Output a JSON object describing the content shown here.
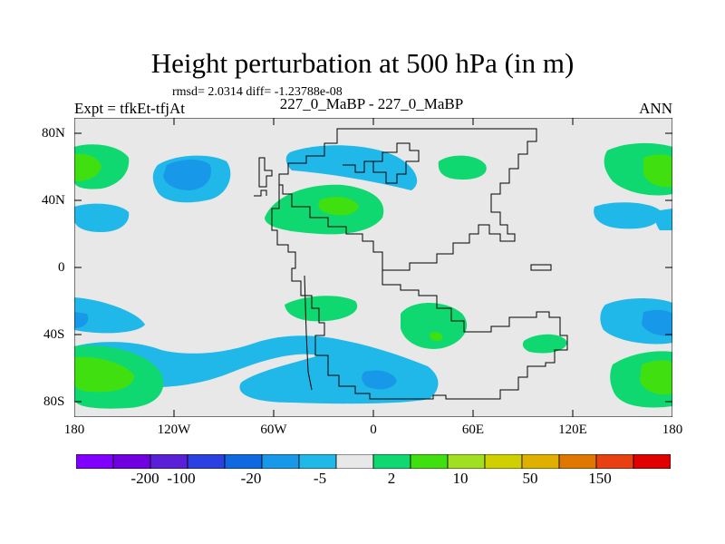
{
  "title": "Height perturbation at 500 hPa (in m)",
  "stats_line": "rmsd= 2.0314 diff= -1.23788e-08",
  "left_label": "Expt = tfkEt-tfjAt",
  "center_label": "227_0_MaBP - 227_0_MaBP",
  "right_label": "ANN",
  "x_ticks": [
    "180",
    "120W",
    "60W",
    "0",
    "60E",
    "120E",
    "180"
  ],
  "y_ticks": [
    "80N",
    "40N",
    "0",
    "40S",
    "80S"
  ],
  "colorbar": {
    "colors": [
      "#8000ff",
      "#7000e0",
      "#5a20d8",
      "#2a40e0",
      "#1068e0",
      "#1898e8",
      "#20b8e8",
      "#e8e8e8",
      "#10d870",
      "#40e010",
      "#a0e020",
      "#d0d000",
      "#e0b000",
      "#e07800",
      "#e84010",
      "#e00000"
    ],
    "labels": [
      "-200",
      "-100",
      "-20",
      "-5",
      "2",
      "10",
      "50",
      "150"
    ]
  },
  "map": {
    "background": "#e8e8e8",
    "contour_colors": {
      "neg_light": "#20b8e8",
      "neg_mid": "#1898e8",
      "pos_light": "#10d870",
      "pos_mid": "#40e010"
    }
  }
}
